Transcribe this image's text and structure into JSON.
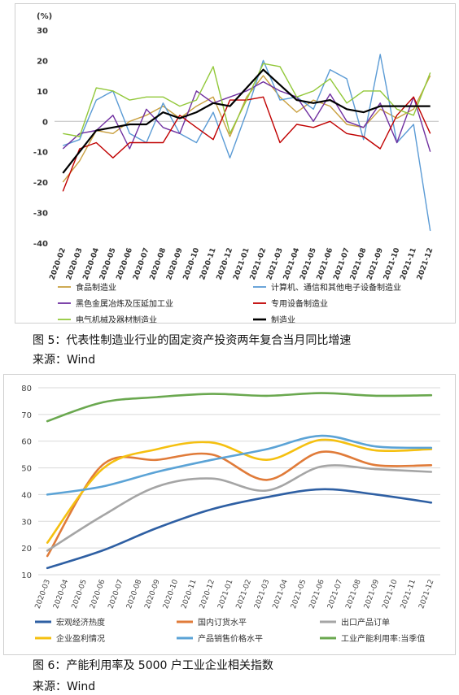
{
  "chart_data": [
    {
      "type": "line",
      "title": "",
      "unit_label": "(%)",
      "ylim": [
        -40,
        30
      ],
      "yticks": [
        -40,
        -30,
        -20,
        -10,
        0,
        10,
        20,
        30
      ],
      "x": [
        "2020-02",
        "2020-03",
        "2020-04",
        "2020-05",
        "2020-06",
        "2020-07",
        "2020-08",
        "2020-09",
        "2020-10",
        "2020-11",
        "2020-12",
        "2021-01",
        "2021-02",
        "2021-03",
        "2021-04",
        "2021-05",
        "2021-06",
        "2021-07",
        "2021-08",
        "2021-09",
        "2021-10",
        "2021-11",
        "2021-12"
      ],
      "series": [
        {
          "name": "食品制造业",
          "color": "#c9a040",
          "width": 1.4,
          "values": [
            -20,
            -13,
            -3,
            -4,
            0,
            2,
            5,
            1,
            5,
            8,
            -5,
            8,
            15,
            8,
            3,
            7,
            5,
            -1,
            -2,
            4,
            1,
            4,
            15
          ]
        },
        {
          "name": "计算机、通信和其他电子设备制造业",
          "color": "#5b9bd5",
          "width": 1.4,
          "values": [
            -8,
            -6,
            7,
            10,
            -4,
            -7,
            6,
            -4,
            -7,
            3,
            -12,
            3,
            20,
            7,
            8,
            4,
            17,
            14,
            -6,
            22,
            -7,
            -1,
            -36
          ]
        },
        {
          "name": "黑色金属冶炼及压延加工业",
          "color": "#7030a0",
          "width": 1.4,
          "values": [
            -9,
            -4,
            -3,
            2,
            -9,
            4,
            -2,
            -4,
            10,
            6,
            8,
            10,
            13,
            10,
            8,
            0,
            9,
            0,
            -2,
            6,
            -7,
            8,
            -10
          ]
        },
        {
          "name": "专用设备制造业",
          "color": "#c00000",
          "width": 1.4,
          "values": [
            -23,
            -9,
            -7,
            -12,
            -7,
            -7,
            -7,
            2,
            -2,
            -6,
            7,
            7,
            8,
            -7,
            -1,
            -2,
            0,
            -4,
            -5,
            -9,
            2,
            8,
            -4
          ]
        },
        {
          "name": "电气机械及器材制造业",
          "color": "#92c83a",
          "width": 1.4,
          "values": [
            -4,
            -5,
            11,
            10,
            7,
            8,
            8,
            5,
            7,
            18,
            -4,
            7,
            19,
            18,
            8,
            10,
            14,
            6,
            10,
            10,
            4,
            2,
            16
          ]
        },
        {
          "name": "制造业",
          "color": "#000000",
          "width": 2.2,
          "values": [
            -17,
            -10,
            -3,
            -2,
            -1,
            -1,
            3,
            1,
            3,
            6,
            5,
            11,
            17,
            12,
            7,
            6,
            7,
            4,
            3,
            5,
            5,
            5,
            5
          ]
        }
      ]
    },
    {
      "type": "line",
      "title": "",
      "ylim": [
        10,
        80
      ],
      "yticks": [
        10,
        20,
        30,
        40,
        50,
        60,
        70,
        80
      ],
      "x": [
        "2020-03",
        "2020-04",
        "2020-05",
        "2020-06",
        "2020-07",
        "2020-08",
        "2020-09",
        "2020-10",
        "2020-11",
        "2020-12",
        "2021-01",
        "2021-02",
        "2021-03",
        "2021-04",
        "2021-05",
        "2021-06",
        "2021-07",
        "2021-08",
        "2021-09",
        "2021-10",
        "2021-11",
        "2021-12"
      ],
      "series": [
        {
          "name": "宏观经济热度",
          "color": "#2e5fa3",
          "points": [
            [
              0,
              12.5
            ],
            [
              3,
              19
            ],
            [
              6,
              27.5
            ],
            [
              9,
              34.5
            ],
            [
              12,
              39
            ],
            [
              15,
              42
            ],
            [
              18,
              40
            ],
            [
              21,
              37
            ]
          ]
        },
        {
          "name": "国内订货水平",
          "color": "#e07b39",
          "points": [
            [
              0,
              17
            ],
            [
              3,
              51
            ],
            [
              6,
              53
            ],
            [
              9,
              55
            ],
            [
              12,
              45.5
            ],
            [
              15,
              56
            ],
            [
              18,
              51
            ],
            [
              21,
              51
            ]
          ]
        },
        {
          "name": "出口产品订单",
          "color": "#a5a5a5",
          "points": [
            [
              0,
              19
            ],
            [
              3,
              32
            ],
            [
              6,
              43
            ],
            [
              9,
              46
            ],
            [
              12,
              41.5
            ],
            [
              15,
              50.5
            ],
            [
              18,
              49.5
            ],
            [
              21,
              48.5
            ]
          ]
        },
        {
          "name": "企业盈利情况",
          "color": "#f5c010",
          "points": [
            [
              0,
              22
            ],
            [
              3,
              49.5
            ],
            [
              6,
              57
            ],
            [
              9,
              59.5
            ],
            [
              12,
              53
            ],
            [
              15,
              60.5
            ],
            [
              18,
              56.5
            ],
            [
              21,
              57
            ]
          ]
        },
        {
          "name": "产品销售价格水平",
          "color": "#5ba3d6",
          "points": [
            [
              0,
              40
            ],
            [
              3,
              43
            ],
            [
              6,
              48.5
            ],
            [
              9,
              53
            ],
            [
              12,
              57
            ],
            [
              15,
              62
            ],
            [
              18,
              58
            ],
            [
              21,
              57.5
            ]
          ]
        },
        {
          "name": "工业产能利用率:当季值",
          "color": "#6aa84f",
          "points": [
            [
              0,
              67.5
            ],
            [
              3,
              74.5
            ],
            [
              6,
              76.5
            ],
            [
              9,
              77.7
            ],
            [
              12,
              77
            ],
            [
              15,
              78
            ],
            [
              18,
              77
            ],
            [
              21,
              77.2
            ]
          ]
        }
      ]
    }
  ],
  "captions": {
    "fig5": "图 5：代表性制造业行业的固定资产投资两年复合当月同比增速",
    "fig5_source": "来源：Wind",
    "fig6": "图 6：产能利用率及 5000 户工业企业相关指数",
    "fig6_source": "来源：Wind"
  }
}
